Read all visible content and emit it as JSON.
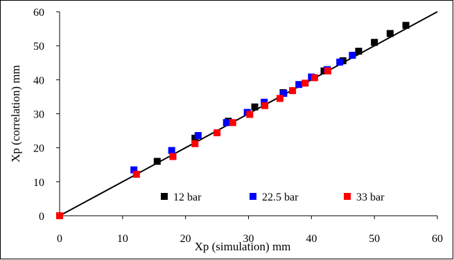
{
  "chart_data": {
    "type": "scatter",
    "title": "",
    "xlabel": "Xp (simulation) mm",
    "ylabel": "Xp (correlation) mm",
    "xlim": [
      0,
      60
    ],
    "ylim": [
      0,
      60
    ],
    "xticks": [
      "0",
      "10",
      "20",
      "30",
      "40",
      "50",
      "60"
    ],
    "yticks": [
      "0",
      "10",
      "20",
      "30",
      "40",
      "50",
      "60"
    ],
    "grid": false,
    "legend_position": "bottom-inside",
    "reference_line": {
      "x": [
        0,
        60
      ],
      "y": [
        0,
        60
      ]
    },
    "series": [
      {
        "name": "12 bar",
        "color": "#000000",
        "points": [
          [
            0,
            0
          ],
          [
            15.5,
            16.0
          ],
          [
            21.5,
            22.8
          ],
          [
            26.8,
            27.8
          ],
          [
            31,
            32.0
          ],
          [
            35.5,
            36.2
          ],
          [
            42,
            42.6
          ],
          [
            45,
            45.6
          ],
          [
            47.5,
            48.4
          ],
          [
            50,
            51.0
          ],
          [
            52.5,
            53.6
          ],
          [
            55,
            56.0
          ]
        ]
      },
      {
        "name": "22.5 bar",
        "color": "#0000ff",
        "points": [
          [
            11.8,
            13.5
          ],
          [
            17.8,
            19.2
          ],
          [
            22,
            23.6
          ],
          [
            26.5,
            27.4
          ],
          [
            29.8,
            30.4
          ],
          [
            32.5,
            33.4
          ],
          [
            35.6,
            36.0
          ],
          [
            38,
            38.6
          ],
          [
            40,
            40.8
          ],
          [
            42.5,
            43.0
          ],
          [
            44.5,
            45.2
          ],
          [
            46.5,
            47.2
          ]
        ]
      },
      {
        "name": "33 bar",
        "color": "#ff0000",
        "points": [
          [
            0,
            0
          ],
          [
            12.2,
            12.2
          ],
          [
            18,
            17.4
          ],
          [
            21.5,
            21.2
          ],
          [
            25,
            24.4
          ],
          [
            27.5,
            27.4
          ],
          [
            30.2,
            29.8
          ],
          [
            32.6,
            32.4
          ],
          [
            35,
            34.5
          ],
          [
            37,
            36.8
          ],
          [
            39,
            39.0
          ],
          [
            40.5,
            40.6
          ],
          [
            42.6,
            42.6
          ]
        ]
      }
    ]
  }
}
